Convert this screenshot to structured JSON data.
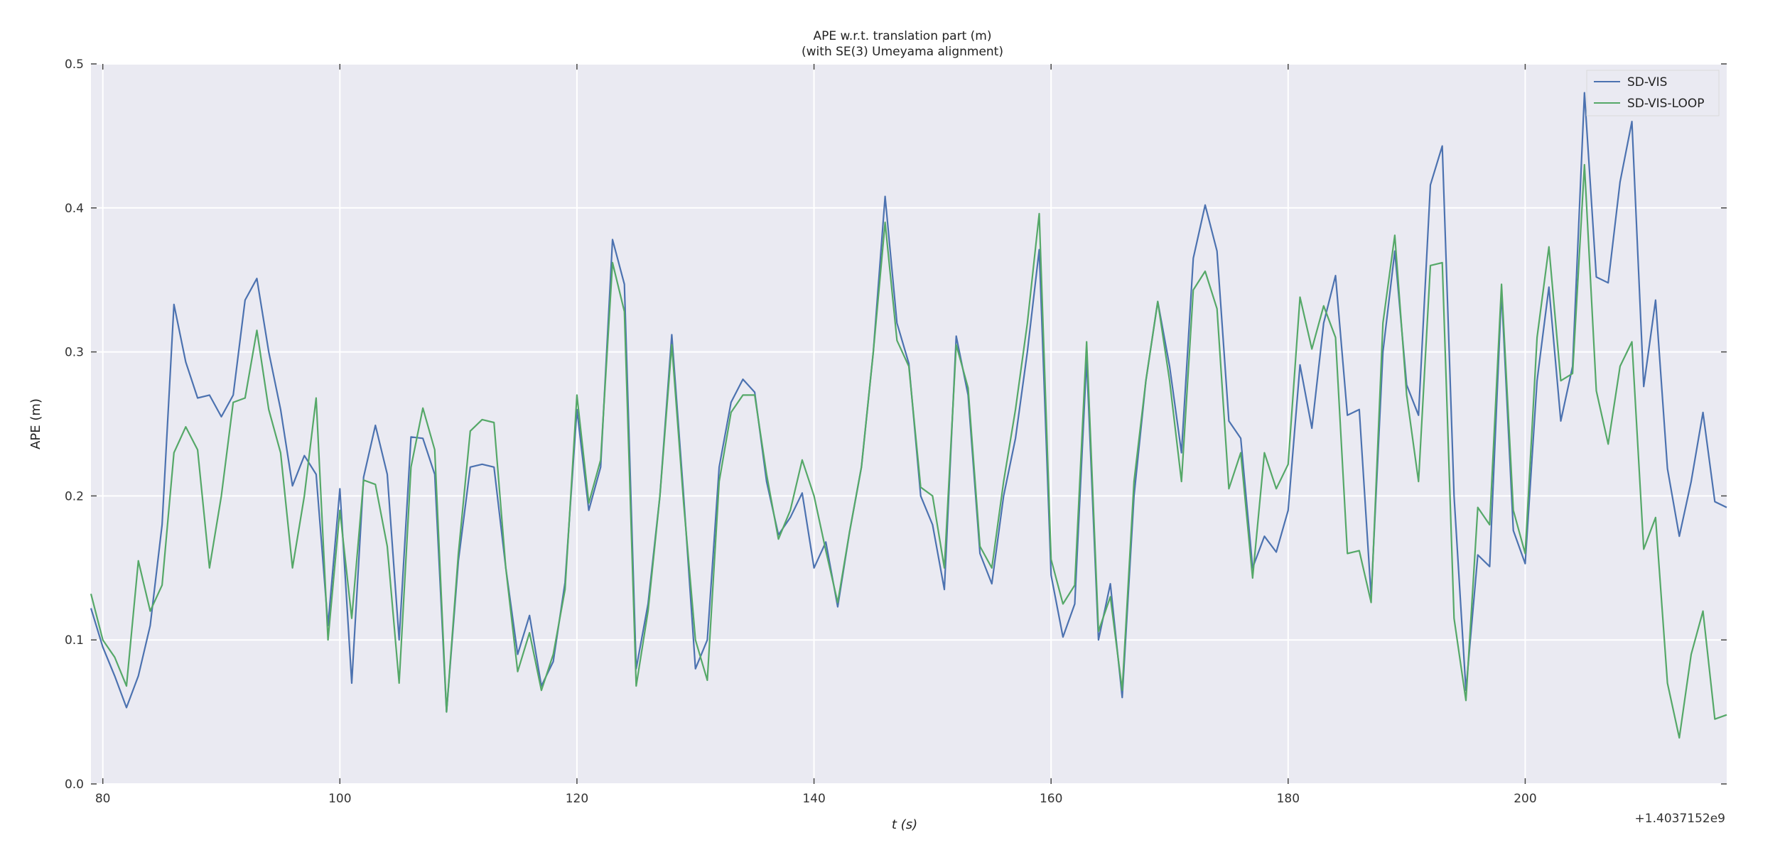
{
  "chart_data": {
    "type": "line",
    "title": "APE w.r.t. translation part (m)",
    "subtitle": "(with SE(3) Umeyama alignment)",
    "xlabel": "t (s)",
    "ylabel": "APE (m)",
    "x_offset_label": "+1.4037152e9",
    "xlim": [
      79,
      217
    ],
    "ylim": [
      0.0,
      0.5
    ],
    "xticks": [
      80,
      100,
      120,
      140,
      160,
      180,
      200
    ],
    "yticks": [
      0.0,
      0.1,
      0.2,
      0.3,
      0.4,
      0.5
    ],
    "grid": true,
    "legend_position": "top-right",
    "series": [
      {
        "name": "SD-VIS",
        "color": "#4c72b0",
        "points": [
          [
            79,
            0.122
          ],
          [
            80,
            0.095
          ],
          [
            81,
            0.075
          ],
          [
            82,
            0.053
          ],
          [
            83,
            0.075
          ],
          [
            84,
            0.11
          ],
          [
            85,
            0.18
          ],
          [
            86,
            0.333
          ],
          [
            87,
            0.293
          ],
          [
            88,
            0.268
          ],
          [
            89,
            0.27
          ],
          [
            90,
            0.255
          ],
          [
            91,
            0.27
          ],
          [
            92,
            0.336
          ],
          [
            93,
            0.351
          ],
          [
            94,
            0.3
          ],
          [
            95,
            0.26
          ],
          [
            96,
            0.207
          ],
          [
            97,
            0.228
          ],
          [
            98,
            0.215
          ],
          [
            99,
            0.11
          ],
          [
            100,
            0.205
          ],
          [
            101,
            0.07
          ],
          [
            102,
            0.213
          ],
          [
            103,
            0.249
          ],
          [
            104,
            0.215
          ],
          [
            105,
            0.1
          ],
          [
            106,
            0.241
          ],
          [
            107,
            0.24
          ],
          [
            108,
            0.215
          ],
          [
            109,
            0.05
          ],
          [
            110,
            0.155
          ],
          [
            111,
            0.22
          ],
          [
            112,
            0.222
          ],
          [
            113,
            0.22
          ],
          [
            114,
            0.15
          ],
          [
            115,
            0.09
          ],
          [
            116,
            0.117
          ],
          [
            117,
            0.068
          ],
          [
            118,
            0.085
          ],
          [
            119,
            0.14
          ],
          [
            120,
            0.26
          ],
          [
            121,
            0.19
          ],
          [
            122,
            0.22
          ],
          [
            123,
            0.378
          ],
          [
            124,
            0.347
          ],
          [
            125,
            0.08
          ],
          [
            126,
            0.125
          ],
          [
            127,
            0.2
          ],
          [
            128,
            0.312
          ],
          [
            129,
            0.2
          ],
          [
            130,
            0.08
          ],
          [
            131,
            0.1
          ],
          [
            132,
            0.22
          ],
          [
            133,
            0.265
          ],
          [
            134,
            0.281
          ],
          [
            135,
            0.272
          ],
          [
            136,
            0.21
          ],
          [
            137,
            0.173
          ],
          [
            138,
            0.185
          ],
          [
            139,
            0.202
          ],
          [
            140,
            0.15
          ],
          [
            141,
            0.168
          ],
          [
            142,
            0.123
          ],
          [
            143,
            0.175
          ],
          [
            144,
            0.22
          ],
          [
            145,
            0.3
          ],
          [
            146,
            0.408
          ],
          [
            147,
            0.32
          ],
          [
            148,
            0.292
          ],
          [
            149,
            0.2
          ],
          [
            150,
            0.18
          ],
          [
            151,
            0.135
          ],
          [
            152,
            0.311
          ],
          [
            153,
            0.27
          ],
          [
            154,
            0.16
          ],
          [
            155,
            0.139
          ],
          [
            156,
            0.2
          ],
          [
            157,
            0.24
          ],
          [
            158,
            0.3
          ],
          [
            159,
            0.371
          ],
          [
            160,
            0.145
          ],
          [
            161,
            0.102
          ],
          [
            162,
            0.125
          ],
          [
            163,
            0.295
          ],
          [
            164,
            0.1
          ],
          [
            165,
            0.139
          ],
          [
            166,
            0.06
          ],
          [
            167,
            0.2
          ],
          [
            168,
            0.28
          ],
          [
            169,
            0.335
          ],
          [
            170,
            0.29
          ],
          [
            171,
            0.23
          ],
          [
            172,
            0.365
          ],
          [
            173,
            0.402
          ],
          [
            174,
            0.37
          ],
          [
            175,
            0.252
          ],
          [
            176,
            0.24
          ],
          [
            177,
            0.15
          ],
          [
            178,
            0.172
          ],
          [
            179,
            0.161
          ],
          [
            180,
            0.19
          ],
          [
            181,
            0.291
          ],
          [
            182,
            0.247
          ],
          [
            183,
            0.32
          ],
          [
            184,
            0.353
          ],
          [
            185,
            0.256
          ],
          [
            186,
            0.26
          ],
          [
            187,
            0.13
          ],
          [
            188,
            0.3
          ],
          [
            189,
            0.37
          ],
          [
            190,
            0.277
          ],
          [
            191,
            0.256
          ],
          [
            192,
            0.416
          ],
          [
            193,
            0.443
          ],
          [
            194,
            0.2
          ],
          [
            195,
            0.065
          ],
          [
            196,
            0.159
          ],
          [
            197,
            0.151
          ],
          [
            198,
            0.342
          ],
          [
            199,
            0.176
          ],
          [
            200,
            0.153
          ],
          [
            201,
            0.28
          ],
          [
            202,
            0.345
          ],
          [
            203,
            0.252
          ],
          [
            204,
            0.29
          ],
          [
            205,
            0.48
          ],
          [
            206,
            0.352
          ],
          [
            207,
            0.348
          ],
          [
            208,
            0.418
          ],
          [
            209,
            0.46
          ],
          [
            210,
            0.276
          ],
          [
            211,
            0.336
          ],
          [
            212,
            0.219
          ],
          [
            213,
            0.172
          ],
          [
            214,
            0.21
          ],
          [
            215,
            0.258
          ],
          [
            216,
            0.196
          ],
          [
            217,
            0.192
          ]
        ]
      },
      {
        "name": "SD-VIS-LOOP",
        "color": "#55a868",
        "points": [
          [
            79,
            0.132
          ],
          [
            80,
            0.1
          ],
          [
            81,
            0.088
          ],
          [
            82,
            0.068
          ],
          [
            83,
            0.155
          ],
          [
            84,
            0.12
          ],
          [
            85,
            0.138
          ],
          [
            86,
            0.23
          ],
          [
            87,
            0.248
          ],
          [
            88,
            0.232
          ],
          [
            89,
            0.15
          ],
          [
            90,
            0.2
          ],
          [
            91,
            0.265
          ],
          [
            92,
            0.268
          ],
          [
            93,
            0.315
          ],
          [
            94,
            0.26
          ],
          [
            95,
            0.23
          ],
          [
            96,
            0.15
          ],
          [
            97,
            0.2
          ],
          [
            98,
            0.268
          ],
          [
            99,
            0.1
          ],
          [
            100,
            0.19
          ],
          [
            101,
            0.115
          ],
          [
            102,
            0.211
          ],
          [
            103,
            0.208
          ],
          [
            104,
            0.165
          ],
          [
            105,
            0.07
          ],
          [
            106,
            0.22
          ],
          [
            107,
            0.261
          ],
          [
            108,
            0.232
          ],
          [
            109,
            0.05
          ],
          [
            110,
            0.16
          ],
          [
            111,
            0.245
          ],
          [
            112,
            0.253
          ],
          [
            113,
            0.251
          ],
          [
            114,
            0.15
          ],
          [
            115,
            0.078
          ],
          [
            116,
            0.105
          ],
          [
            117,
            0.065
          ],
          [
            118,
            0.09
          ],
          [
            119,
            0.135
          ],
          [
            120,
            0.27
          ],
          [
            121,
            0.195
          ],
          [
            122,
            0.225
          ],
          [
            123,
            0.362
          ],
          [
            124,
            0.328
          ],
          [
            125,
            0.068
          ],
          [
            126,
            0.12
          ],
          [
            127,
            0.2
          ],
          [
            128,
            0.305
          ],
          [
            129,
            0.195
          ],
          [
            130,
            0.1
          ],
          [
            131,
            0.072
          ],
          [
            132,
            0.21
          ],
          [
            133,
            0.258
          ],
          [
            134,
            0.27
          ],
          [
            135,
            0.27
          ],
          [
            136,
            0.215
          ],
          [
            137,
            0.17
          ],
          [
            138,
            0.19
          ],
          [
            139,
            0.225
          ],
          [
            140,
            0.2
          ],
          [
            141,
            0.162
          ],
          [
            142,
            0.126
          ],
          [
            143,
            0.175
          ],
          [
            144,
            0.22
          ],
          [
            145,
            0.3
          ],
          [
            146,
            0.39
          ],
          [
            147,
            0.308
          ],
          [
            148,
            0.29
          ],
          [
            149,
            0.206
          ],
          [
            150,
            0.2
          ],
          [
            151,
            0.15
          ],
          [
            152,
            0.305
          ],
          [
            153,
            0.275
          ],
          [
            154,
            0.165
          ],
          [
            155,
            0.15
          ],
          [
            156,
            0.21
          ],
          [
            157,
            0.26
          ],
          [
            158,
            0.32
          ],
          [
            159,
            0.396
          ],
          [
            160,
            0.156
          ],
          [
            161,
            0.125
          ],
          [
            162,
            0.138
          ],
          [
            163,
            0.307
          ],
          [
            164,
            0.106
          ],
          [
            165,
            0.13
          ],
          [
            166,
            0.065
          ],
          [
            167,
            0.21
          ],
          [
            168,
            0.28
          ],
          [
            169,
            0.335
          ],
          [
            170,
            0.28
          ],
          [
            171,
            0.21
          ],
          [
            172,
            0.343
          ],
          [
            173,
            0.356
          ],
          [
            174,
            0.33
          ],
          [
            175,
            0.205
          ],
          [
            176,
            0.23
          ],
          [
            177,
            0.143
          ],
          [
            178,
            0.23
          ],
          [
            179,
            0.205
          ],
          [
            180,
            0.222
          ],
          [
            181,
            0.338
          ],
          [
            182,
            0.302
          ],
          [
            183,
            0.332
          ],
          [
            184,
            0.31
          ],
          [
            185,
            0.16
          ],
          [
            186,
            0.162
          ],
          [
            187,
            0.126
          ],
          [
            188,
            0.32
          ],
          [
            189,
            0.381
          ],
          [
            190,
            0.27
          ],
          [
            191,
            0.21
          ],
          [
            192,
            0.36
          ],
          [
            193,
            0.362
          ],
          [
            194,
            0.115
          ],
          [
            195,
            0.058
          ],
          [
            196,
            0.192
          ],
          [
            197,
            0.18
          ],
          [
            198,
            0.347
          ],
          [
            199,
            0.19
          ],
          [
            200,
            0.16
          ],
          [
            201,
            0.31
          ],
          [
            202,
            0.373
          ],
          [
            203,
            0.28
          ],
          [
            204,
            0.285
          ],
          [
            205,
            0.43
          ],
          [
            206,
            0.273
          ],
          [
            207,
            0.236
          ],
          [
            208,
            0.29
          ],
          [
            209,
            0.307
          ],
          [
            210,
            0.163
          ],
          [
            211,
            0.185
          ],
          [
            212,
            0.07
          ],
          [
            213,
            0.032
          ],
          [
            214,
            0.09
          ],
          [
            215,
            0.12
          ],
          [
            216,
            0.045
          ],
          [
            217,
            0.048
          ]
        ]
      }
    ]
  }
}
